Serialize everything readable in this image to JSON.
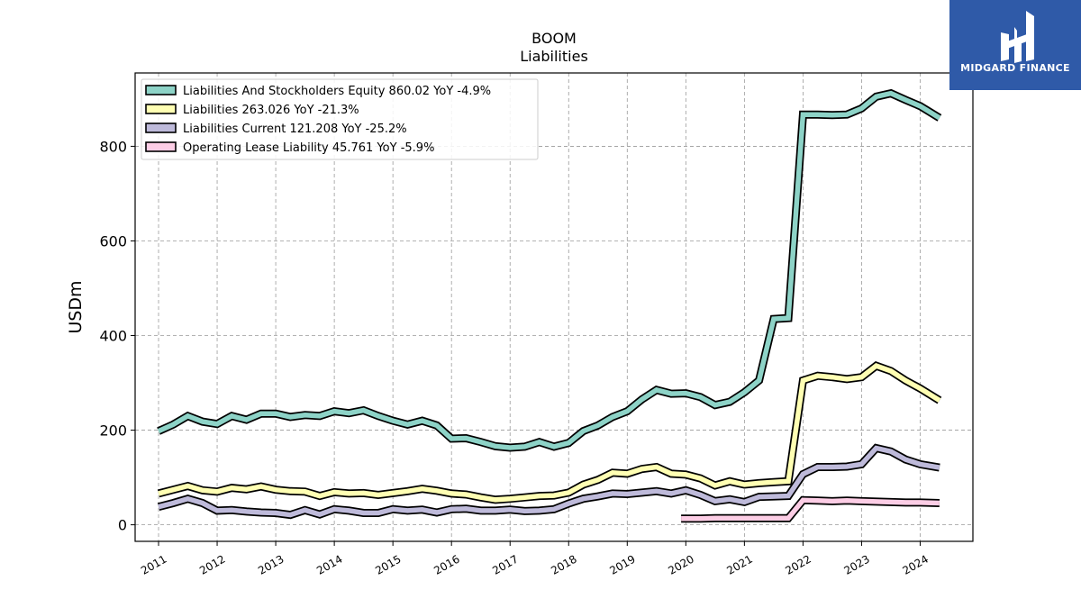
{
  "chart_data": {
    "type": "line",
    "title": "BOOM",
    "subtitle": "Liabilities",
    "ylabel": "USDm",
    "xlim": [
      2010.6,
      2024.9
    ],
    "ylim": [
      -35,
      955
    ],
    "yticks": [
      0,
      200,
      400,
      600,
      800
    ],
    "xticks": [
      "2011",
      "2012",
      "2013",
      "2014",
      "2015",
      "2016",
      "2017",
      "2018",
      "2019",
      "2020",
      "2021",
      "2022",
      "2023",
      "2024"
    ],
    "grid": true,
    "legend_position": "top-left",
    "series": [
      {
        "name": "Liabilities And Stockholders Equity",
        "legend": "Liabilities And Stockholders Equity  860.02 YoY -4.9%",
        "color": "#8dd3c7",
        "points": [
          [
            2011.0,
            198
          ],
          [
            2011.25,
            212
          ],
          [
            2011.5,
            230
          ],
          [
            2011.75,
            218
          ],
          [
            2012.0,
            213
          ],
          [
            2012.25,
            230
          ],
          [
            2012.5,
            222
          ],
          [
            2012.75,
            235
          ],
          [
            2013.0,
            235
          ],
          [
            2013.25,
            228
          ],
          [
            2013.5,
            232
          ],
          [
            2013.75,
            230
          ],
          [
            2014.0,
            240
          ],
          [
            2014.25,
            236
          ],
          [
            2014.5,
            242
          ],
          [
            2014.75,
            230
          ],
          [
            2015.0,
            220
          ],
          [
            2015.25,
            212
          ],
          [
            2015.5,
            220
          ],
          [
            2015.75,
            210
          ],
          [
            2016.0,
            182
          ],
          [
            2016.25,
            183
          ],
          [
            2016.5,
            175
          ],
          [
            2016.75,
            166
          ],
          [
            2017.0,
            163
          ],
          [
            2017.25,
            165
          ],
          [
            2017.5,
            175
          ],
          [
            2017.75,
            165
          ],
          [
            2018.0,
            173
          ],
          [
            2018.25,
            198
          ],
          [
            2018.5,
            210
          ],
          [
            2018.75,
            228
          ],
          [
            2019.0,
            240
          ],
          [
            2019.25,
            265
          ],
          [
            2019.5,
            285
          ],
          [
            2019.75,
            277
          ],
          [
            2020.0,
            278
          ],
          [
            2020.25,
            270
          ],
          [
            2020.5,
            253
          ],
          [
            2020.75,
            260
          ],
          [
            2021.0,
            280
          ],
          [
            2021.25,
            305
          ],
          [
            2021.5,
            435
          ],
          [
            2021.75,
            437
          ],
          [
            2022.0,
            867
          ],
          [
            2022.25,
            867
          ],
          [
            2022.5,
            866
          ],
          [
            2022.75,
            867
          ],
          [
            2023.0,
            880
          ],
          [
            2023.25,
            905
          ],
          [
            2023.5,
            912
          ],
          [
            2023.75,
            898
          ],
          [
            2024.0,
            885
          ],
          [
            2024.33,
            860
          ]
        ]
      },
      {
        "name": "Liabilities",
        "legend": "Liabilities  263.026 YoY -21.3%",
        "color": "#ffffb3",
        "points": [
          [
            2011.0,
            66
          ],
          [
            2011.25,
            74
          ],
          [
            2011.5,
            82
          ],
          [
            2011.75,
            73
          ],
          [
            2012.0,
            70
          ],
          [
            2012.25,
            78
          ],
          [
            2012.5,
            75
          ],
          [
            2012.75,
            81
          ],
          [
            2013.0,
            74
          ],
          [
            2013.25,
            71
          ],
          [
            2013.5,
            70
          ],
          [
            2013.75,
            61
          ],
          [
            2014.0,
            69
          ],
          [
            2014.25,
            66
          ],
          [
            2014.5,
            67
          ],
          [
            2014.75,
            63
          ],
          [
            2015.0,
            67
          ],
          [
            2015.25,
            71
          ],
          [
            2015.5,
            76
          ],
          [
            2015.75,
            72
          ],
          [
            2016.0,
            66
          ],
          [
            2016.25,
            64
          ],
          [
            2016.5,
            58
          ],
          [
            2016.75,
            53
          ],
          [
            2017.0,
            55
          ],
          [
            2017.25,
            58
          ],
          [
            2017.5,
            61
          ],
          [
            2017.75,
            62
          ],
          [
            2018.0,
            68
          ],
          [
            2018.25,
            85
          ],
          [
            2018.5,
            95
          ],
          [
            2018.75,
            110
          ],
          [
            2019.0,
            108
          ],
          [
            2019.25,
            118
          ],
          [
            2019.5,
            122
          ],
          [
            2019.75,
            108
          ],
          [
            2020.0,
            106
          ],
          [
            2020.25,
            98
          ],
          [
            2020.5,
            83
          ],
          [
            2020.75,
            92
          ],
          [
            2021.0,
            85
          ],
          [
            2021.25,
            88
          ],
          [
            2021.5,
            90
          ],
          [
            2021.75,
            92
          ],
          [
            2022.0,
            305
          ],
          [
            2022.25,
            315
          ],
          [
            2022.5,
            312
          ],
          [
            2022.75,
            308
          ],
          [
            2023.0,
            312
          ],
          [
            2023.25,
            336
          ],
          [
            2023.5,
            325
          ],
          [
            2023.75,
            305
          ],
          [
            2024.0,
            288
          ],
          [
            2024.33,
            263
          ]
        ]
      },
      {
        "name": "Liabilities Current",
        "legend": "Liabilities Current  121.208 YoY -25.2%",
        "color": "#bebada",
        "points": [
          [
            2011.0,
            38
          ],
          [
            2011.25,
            46
          ],
          [
            2011.5,
            55
          ],
          [
            2011.75,
            46
          ],
          [
            2012.0,
            30
          ],
          [
            2012.25,
            31
          ],
          [
            2012.5,
            28
          ],
          [
            2012.75,
            26
          ],
          [
            2013.0,
            25
          ],
          [
            2013.25,
            21
          ],
          [
            2013.5,
            31
          ],
          [
            2013.75,
            22
          ],
          [
            2014.0,
            33
          ],
          [
            2014.25,
            30
          ],
          [
            2014.5,
            25
          ],
          [
            2014.75,
            25
          ],
          [
            2015.0,
            33
          ],
          [
            2015.25,
            30
          ],
          [
            2015.5,
            32
          ],
          [
            2015.75,
            26
          ],
          [
            2016.0,
            33
          ],
          [
            2016.25,
            34
          ],
          [
            2016.5,
            30
          ],
          [
            2016.75,
            30
          ],
          [
            2017.0,
            32
          ],
          [
            2017.25,
            29
          ],
          [
            2017.5,
            30
          ],
          [
            2017.75,
            33
          ],
          [
            2018.0,
            45
          ],
          [
            2018.25,
            55
          ],
          [
            2018.5,
            60
          ],
          [
            2018.75,
            66
          ],
          [
            2019.0,
            65
          ],
          [
            2019.25,
            68
          ],
          [
            2019.5,
            71
          ],
          [
            2019.75,
            66
          ],
          [
            2020.0,
            73
          ],
          [
            2020.25,
            63
          ],
          [
            2020.5,
            50
          ],
          [
            2020.75,
            54
          ],
          [
            2021.0,
            48
          ],
          [
            2021.25,
            59
          ],
          [
            2021.5,
            60
          ],
          [
            2021.75,
            61
          ],
          [
            2022.0,
            107
          ],
          [
            2022.25,
            122
          ],
          [
            2022.5,
            122
          ],
          [
            2022.75,
            123
          ],
          [
            2023.0,
            128
          ],
          [
            2023.25,
            162
          ],
          [
            2023.5,
            155
          ],
          [
            2023.75,
            138
          ],
          [
            2024.0,
            128
          ],
          [
            2024.33,
            121
          ]
        ]
      },
      {
        "name": "Operating Lease Liability",
        "legend": "Operating Lease Liability  45.761 YoY -5.9%",
        "color": "#fccde5",
        "points": [
          [
            2019.92,
            13
          ],
          [
            2020.25,
            13
          ],
          [
            2020.5,
            14
          ],
          [
            2020.75,
            14
          ],
          [
            2021.0,
            14
          ],
          [
            2021.25,
            14
          ],
          [
            2021.5,
            14
          ],
          [
            2021.75,
            14
          ],
          [
            2022.0,
            52
          ],
          [
            2022.25,
            51
          ],
          [
            2022.5,
            50
          ],
          [
            2022.75,
            51
          ],
          [
            2023.0,
            50
          ],
          [
            2023.25,
            49
          ],
          [
            2023.5,
            48
          ],
          [
            2023.75,
            47
          ],
          [
            2024.0,
            47
          ],
          [
            2024.33,
            46
          ]
        ]
      }
    ]
  },
  "logo": {
    "text": "MIDGARD FINANCE",
    "background": "#2f5aa8"
  }
}
